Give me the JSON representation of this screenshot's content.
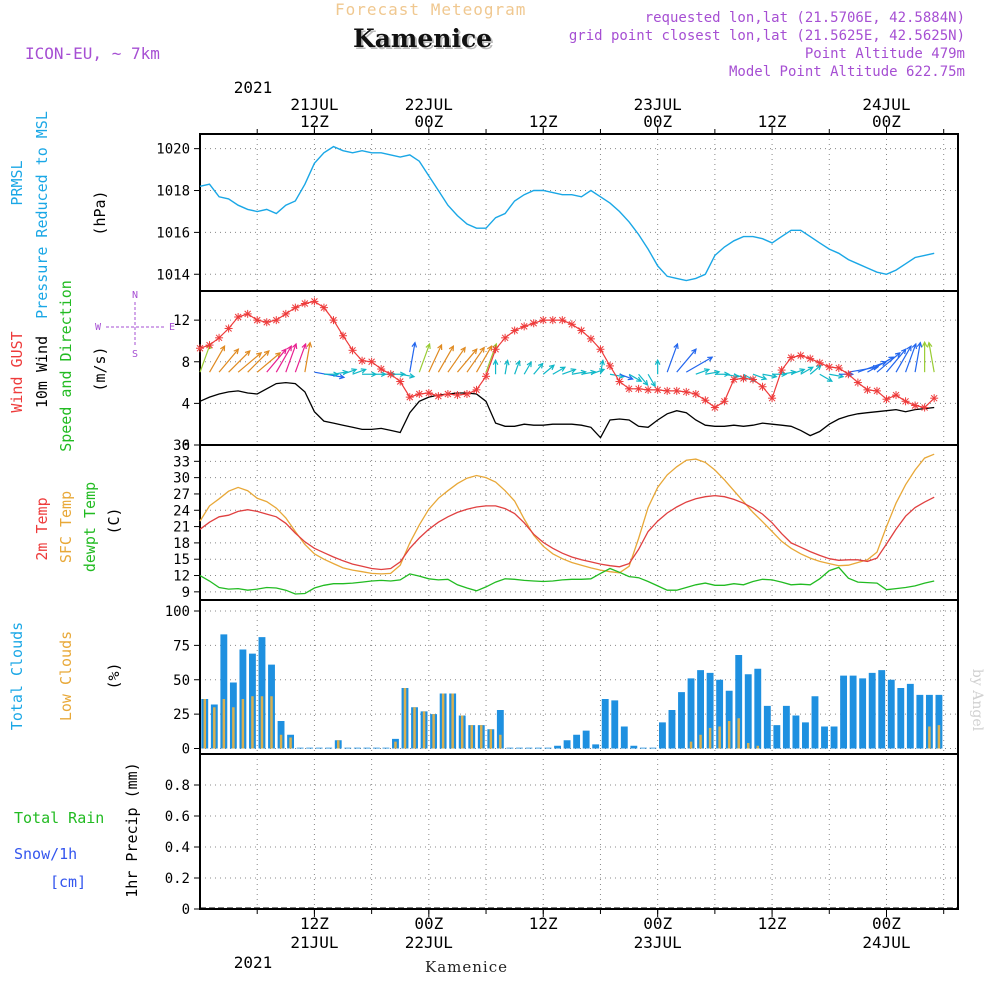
{
  "header": {
    "title": "Forecast Meteogram",
    "place": "Kamenice",
    "model": "ICON-EU, ~ 7km",
    "requested": "requested lon,lat (21.5706E, 42.5884N)",
    "gridpoint": "grid point closest lon,lat (21.5625E, 42.5625N)",
    "point_alt": "Point Altitude 479m",
    "model_alt": "Model Point Altitude 622.75m"
  },
  "footer": {
    "place": "Kamenice",
    "watermark": "by Angel"
  },
  "labels": {
    "prmsl": "PRMSL",
    "pressure_msl": "Pressure Reduced to MSL",
    "hpa": "(hPa)",
    "wind_gust": "Wind GUST",
    "wind_10m": "10m Wind",
    "speed_dir": "Speed and Direction",
    "ms": "(m/s)",
    "compass_n": "N",
    "compass_s": "S",
    "compass_w": "W",
    "compass_e": "E",
    "temp_2m": "2m Temp",
    "sfc_temp": "SFC Temp",
    "dewpt": "dewpt Temp",
    "celsius": "(C)",
    "total_clouds": "Total Clouds",
    "low_clouds": "Low Clouds",
    "percent": "(%)",
    "total_rain": "Total  Rain",
    "snow": "Snow/1h",
    "cm": "[cm]",
    "precip": "1hr Precip (mm)"
  },
  "time_axis": {
    "top_year": "2021",
    "top_ticks": [
      {
        "hour": 12,
        "l1": "21JUL",
        "l2": "12Z"
      },
      {
        "hour": 24,
        "l1": "22JUL",
        "l2": "00Z"
      },
      {
        "hour": 36,
        "l1": "",
        "l2": "12Z"
      },
      {
        "hour": 48,
        "l1": "23JUL",
        "l2": "00Z"
      },
      {
        "hour": 60,
        "l1": "",
        "l2": "12Z"
      },
      {
        "hour": 72,
        "l1": "24JUL",
        "l2": "00Z"
      }
    ],
    "bottom_ticks": [
      {
        "hour": 12,
        "l1": "12Z",
        "l2": "21JUL"
      },
      {
        "hour": 24,
        "l1": "00Z",
        "l2": "22JUL"
      },
      {
        "hour": 36,
        "l1": "12Z",
        "l2": ""
      },
      {
        "hour": 48,
        "l1": "00Z",
        "l2": "23JUL"
      },
      {
        "hour": 60,
        "l1": "12Z",
        "l2": ""
      },
      {
        "hour": 72,
        "l1": "00Z",
        "l2": "24JUL"
      }
    ],
    "bottom_year": "2021"
  },
  "colors": {
    "pressure": "#1aa7e6",
    "gust": "#ee3b3b",
    "wind": "#000000",
    "temp2m": "#e04040",
    "sfc": "#e8a838",
    "dewpt": "#22bb22",
    "total_clouds": "#1e90e0",
    "low_clouds": "#d8b050",
    "label_pressure": "#1aa7e6",
    "label_gust": "#ee3b3b",
    "label_green": "#22bb22",
    "label_orange": "#e8a838",
    "label_blue": "#3355ee",
    "label_purple": "#a64fd3"
  },
  "chart_data": [
    {
      "type": "line",
      "name": "pressure",
      "ylim": [
        1013.2,
        1020.7
      ],
      "yticks": [
        1014,
        1016,
        1018,
        1020
      ],
      "x": [
        0,
        1,
        2,
        3,
        4,
        5,
        6,
        7,
        8,
        9,
        10,
        11,
        12,
        13,
        14,
        15,
        16,
        17,
        18,
        19,
        20,
        21,
        22,
        23,
        24,
        25,
        26,
        27,
        28,
        29,
        30,
        31,
        32,
        33,
        34,
        35,
        36,
        37,
        38,
        39,
        40,
        41,
        42,
        43,
        44,
        45,
        46,
        47,
        48,
        49,
        50,
        51,
        52,
        53,
        54,
        55,
        56,
        57,
        58,
        59,
        60,
        61,
        62,
        63,
        64,
        65,
        66,
        67,
        68,
        69,
        70,
        71,
        72,
        73,
        74,
        75,
        76,
        77
      ],
      "values": [
        1018.2,
        1018.3,
        1017.7,
        1017.6,
        1017.3,
        1017.1,
        1017.0,
        1017.1,
        1016.9,
        1017.3,
        1017.5,
        1018.3,
        1019.3,
        1019.8,
        1020.1,
        1019.9,
        1019.8,
        1019.9,
        1019.8,
        1019.8,
        1019.7,
        1019.6,
        1019.7,
        1019.4,
        1018.7,
        1018.0,
        1017.3,
        1016.8,
        1016.4,
        1016.2,
        1016.2,
        1016.7,
        1016.9,
        1017.5,
        1017.8,
        1018.0,
        1018.0,
        1017.9,
        1017.8,
        1017.8,
        1017.7,
        1018.0,
        1017.7,
        1017.4,
        1017.0,
        1016.5,
        1015.9,
        1015.2,
        1014.4,
        1013.9,
        1013.8,
        1013.7,
        1013.8,
        1014.0,
        1014.9,
        1015.3,
        1015.6,
        1015.8,
        1015.8,
        1015.7,
        1015.5,
        1015.8,
        1016.1,
        1016.1,
        1015.8,
        1015.5,
        1015.2,
        1015.0,
        1014.7,
        1014.5,
        1014.3,
        1014.1,
        1014.0,
        1014.2,
        1014.5,
        1014.8,
        1014.9,
        1015.0
      ]
    },
    {
      "type": "line",
      "name": "wind",
      "ylim": [
        0,
        14.8
      ],
      "yticks": [
        0,
        4,
        8,
        12
      ],
      "x": [
        0,
        1,
        2,
        3,
        4,
        5,
        6,
        7,
        8,
        9,
        10,
        11,
        12,
        13,
        14,
        15,
        16,
        17,
        18,
        19,
        20,
        21,
        22,
        23,
        24,
        25,
        26,
        27,
        28,
        29,
        30,
        31,
        32,
        33,
        34,
        35,
        36,
        37,
        38,
        39,
        40,
        41,
        42,
        43,
        44,
        45,
        46,
        47,
        48,
        49,
        50,
        51,
        52,
        53,
        54,
        55,
        56,
        57,
        58,
        59,
        60,
        61,
        62,
        63,
        64,
        65,
        66,
        67,
        68,
        69,
        70,
        71,
        72,
        73,
        74,
        75,
        76,
        77
      ],
      "gust": [
        9.3,
        9.6,
        10.3,
        11.2,
        12.3,
        12.6,
        12.0,
        11.8,
        12.0,
        12.6,
        13.2,
        13.6,
        13.8,
        13.2,
        12.0,
        10.5,
        9.1,
        8.1,
        8.0,
        7.3,
        6.8,
        6.1,
        4.6,
        4.9,
        5.0,
        4.7,
        4.9,
        4.8,
        4.9,
        5.3,
        6.6,
        9.2,
        10.3,
        11.0,
        11.4,
        11.7,
        12.0,
        12.0,
        12.0,
        11.6,
        11.0,
        10.2,
        9.2,
        7.6,
        6.1,
        5.4,
        5.4,
        5.3,
        5.3,
        5.2,
        5.2,
        5.1,
        4.9,
        4.3,
        3.6,
        4.2,
        6.3,
        6.4,
        6.3,
        5.6,
        4.5,
        7.2,
        8.4,
        8.6,
        8.3,
        7.9,
        7.5,
        7.4,
        6.8,
        6.0,
        5.3,
        5.2,
        4.4,
        4.8,
        4.2,
        3.8,
        3.6,
        4.5
      ],
      "speed": [
        4.2,
        4.6,
        4.9,
        5.1,
        5.2,
        5.0,
        4.9,
        5.4,
        5.9,
        6.0,
        5.9,
        5.1,
        3.2,
        2.3,
        2.1,
        1.9,
        1.7,
        1.5,
        1.5,
        1.6,
        1.4,
        1.2,
        3.1,
        4.2,
        4.6,
        4.8,
        4.9,
        5.0,
        5.0,
        4.9,
        4.2,
        2.1,
        1.8,
        1.8,
        2.0,
        1.9,
        1.9,
        2.0,
        2.0,
        2.0,
        1.9,
        1.7,
        0.7,
        2.4,
        2.5,
        2.4,
        1.8,
        1.7,
        2.4,
        3.0,
        3.3,
        3.1,
        2.4,
        1.9,
        1.8,
        1.8,
        1.9,
        1.8,
        1.9,
        2.1,
        2.0,
        1.9,
        1.8,
        1.4,
        0.9,
        1.3,
        2.0,
        2.5,
        2.8,
        3.0,
        3.1,
        3.2,
        3.3,
        3.4,
        3.2,
        3.4,
        3.5,
        3.6
      ],
      "dir": [
        200,
        210,
        220,
        225,
        230,
        225,
        230,
        220,
        210,
        200,
        200,
        190,
        280,
        270,
        260,
        250,
        250,
        270,
        270,
        270,
        270,
        280,
        190,
        200,
        205,
        210,
        215,
        220,
        215,
        210,
        200,
        180,
        190,
        200,
        210,
        220,
        230,
        240,
        250,
        260,
        260,
        250,
        190,
        280,
        290,
        300,
        320,
        330,
        180,
        200,
        220,
        240,
        250,
        260,
        270,
        280,
        290,
        300,
        290,
        280,
        270,
        260,
        250,
        240,
        230,
        300,
        280,
        270,
        260,
        250,
        240,
        230,
        220,
        210,
        200,
        190,
        180,
        170
      ]
    },
    {
      "type": "line",
      "name": "temperature",
      "ylim": [
        7.5,
        36
      ],
      "yticks": [
        9,
        12,
        15,
        18,
        21,
        24,
        27,
        30,
        33,
        36
      ],
      "x": [
        0,
        1,
        2,
        3,
        4,
        5,
        6,
        7,
        8,
        9,
        10,
        11,
        12,
        13,
        14,
        15,
        16,
        17,
        18,
        19,
        20,
        21,
        22,
        23,
        24,
        25,
        26,
        27,
        28,
        29,
        30,
        31,
        32,
        33,
        34,
        35,
        36,
        37,
        38,
        39,
        40,
        41,
        42,
        43,
        44,
        45,
        46,
        47,
        48,
        49,
        50,
        51,
        52,
        53,
        54,
        55,
        56,
        57,
        58,
        59,
        60,
        61,
        62,
        63,
        64,
        65,
        66,
        67,
        68,
        69,
        70,
        71,
        72,
        73,
        74,
        75,
        76,
        77
      ],
      "temp2m": [
        20.5,
        21.8,
        22.8,
        23.1,
        23.8,
        24.1,
        23.8,
        23.3,
        22.8,
        21.6,
        19.8,
        18.2,
        17.0,
        16.2,
        15.4,
        14.7,
        14.1,
        13.7,
        13.3,
        13.1,
        13.3,
        14.5,
        17.0,
        18.9,
        20.5,
        21.8,
        22.8,
        23.6,
        24.2,
        24.6,
        24.8,
        24.8,
        24.3,
        23.4,
        21.7,
        19.6,
        18.1,
        17.0,
        16.1,
        15.4,
        14.9,
        14.5,
        14.1,
        13.8,
        13.6,
        14.2,
        16.8,
        20.1,
        22.0,
        23.5,
        24.6,
        25.5,
        26.1,
        26.5,
        26.7,
        26.5,
        26.0,
        25.3,
        24.4,
        23.3,
        21.7,
        19.7,
        18.0,
        17.2,
        16.4,
        15.7,
        15.1,
        14.8,
        14.9,
        14.9,
        14.6,
        15.2,
        17.8,
        20.5,
        22.9,
        24.5,
        25.5,
        26.4
      ],
      "sfc": [
        22.0,
        24.8,
        26.1,
        27.5,
        28.2,
        27.6,
        26.2,
        25.6,
        24.4,
        22.6,
        20.1,
        17.7,
        16.0,
        15.0,
        14.2,
        13.4,
        13.0,
        12.7,
        12.4,
        12.3,
        12.4,
        13.9,
        18.0,
        21.3,
        24.2,
        26.2,
        27.6,
        28.9,
        29.9,
        30.4,
        30.0,
        29.2,
        27.6,
        25.7,
        22.4,
        19.4,
        17.4,
        16.0,
        15.1,
        14.4,
        13.9,
        13.4,
        13.0,
        12.7,
        12.5,
        13.7,
        18.8,
        24.5,
        28.2,
        30.5,
        32.0,
        33.2,
        33.4,
        32.8,
        31.4,
        29.6,
        27.6,
        25.6,
        23.6,
        21.9,
        20.1,
        18.3,
        17.0,
        16.0,
        15.2,
        14.6,
        14.2,
        13.8,
        13.9,
        14.4,
        14.9,
        16.3,
        21.0,
        25.3,
        28.7,
        31.4,
        33.6,
        34.3
      ],
      "dewpt": [
        12.0,
        11.0,
        9.8,
        9.5,
        9.6,
        9.3,
        9.5,
        9.8,
        9.7,
        9.3,
        8.6,
        8.7,
        9.7,
        10.2,
        10.5,
        10.5,
        10.6,
        10.8,
        11.0,
        11.1,
        11.0,
        11.2,
        12.3,
        11.9,
        11.4,
        11.2,
        11.3,
        10.3,
        9.7,
        9.2,
        9.9,
        10.8,
        11.4,
        11.3,
        11.1,
        11.0,
        10.9,
        11.0,
        11.2,
        11.3,
        11.3,
        11.4,
        12.4,
        13.3,
        12.6,
        11.8,
        11.6,
        10.9,
        10.1,
        9.3,
        9.3,
        9.8,
        10.3,
        10.6,
        10.2,
        10.2,
        10.5,
        10.3,
        10.9,
        11.3,
        11.2,
        10.8,
        10.3,
        10.4,
        10.3,
        11.4,
        12.9,
        13.5,
        11.5,
        10.8,
        10.7,
        10.6,
        9.4,
        9.6,
        9.8,
        10.1,
        10.6,
        11.0
      ]
    },
    {
      "type": "bar",
      "name": "clouds",
      "ylim": [
        -4,
        108
      ],
      "yticks": [
        0,
        25,
        50,
        75,
        100
      ],
      "x": [
        0,
        1,
        2,
        3,
        4,
        5,
        6,
        7,
        8,
        9,
        10,
        11,
        12,
        13,
        14,
        15,
        16,
        17,
        18,
        19,
        20,
        21,
        22,
        23,
        24,
        25,
        26,
        27,
        28,
        29,
        30,
        31,
        32,
        33,
        34,
        35,
        36,
        37,
        38,
        39,
        40,
        41,
        42,
        43,
        44,
        45,
        46,
        47,
        48,
        49,
        50,
        51,
        52,
        53,
        54,
        55,
        56,
        57,
        58,
        59,
        60,
        61,
        62,
        63,
        64,
        65,
        66,
        67,
        68,
        69,
        70,
        71,
        72,
        73,
        74,
        75,
        76,
        77
      ],
      "total": [
        36,
        32,
        83,
        48,
        72,
        69,
        81,
        61,
        20,
        10,
        0,
        0,
        0,
        0,
        6,
        0,
        0,
        0,
        0,
        0,
        7,
        44,
        30,
        27,
        25,
        40,
        40,
        24,
        17,
        17,
        14,
        28,
        0,
        0,
        0,
        0,
        0,
        2,
        6,
        10,
        13,
        3,
        36,
        35,
        16,
        2,
        0,
        0,
        19,
        28,
        41,
        51,
        57,
        55,
        50,
        42,
        68,
        54,
        58,
        31,
        17,
        31,
        24,
        19,
        38,
        16,
        16,
        53,
        53,
        51,
        55,
        57,
        50,
        44,
        47,
        39,
        39,
        39
      ],
      "low": [
        36,
        30,
        36,
        30,
        36,
        38,
        38,
        38,
        10,
        8,
        0,
        0,
        0,
        0,
        6,
        0,
        0,
        0,
        0,
        0,
        5,
        44,
        30,
        27,
        25,
        40,
        40,
        24,
        17,
        17,
        14,
        10,
        0,
        0,
        0,
        0,
        0,
        0,
        0,
        0,
        0,
        0,
        0,
        0,
        0,
        0,
        0,
        0,
        0,
        0,
        0,
        5,
        10,
        15,
        16,
        20,
        22,
        4,
        2,
        0,
        0,
        0,
        0,
        0,
        0,
        0,
        0,
        0,
        0,
        0,
        0,
        0,
        0,
        0,
        0,
        0,
        16,
        17
      ]
    },
    {
      "type": "bar",
      "name": "precip",
      "ylim": [
        0,
        1.0
      ],
      "yticks": [
        0,
        0.2,
        0.4,
        0.6,
        0.8
      ],
      "x": [
        0,
        1,
        2,
        3,
        4,
        5,
        6,
        7,
        8,
        9,
        10,
        11,
        12,
        13,
        14,
        15,
        16,
        17,
        18,
        19,
        20,
        21,
        22,
        23,
        24,
        25,
        26,
        27,
        28,
        29,
        30,
        31,
        32,
        33,
        34,
        35,
        36,
        37,
        38,
        39,
        40,
        41,
        42,
        43,
        44,
        45,
        46,
        47,
        48,
        49,
        50,
        51,
        52,
        53,
        54,
        55,
        56,
        57,
        58,
        59,
        60,
        61,
        62,
        63,
        64,
        65,
        66,
        67,
        68,
        69,
        70,
        71,
        72,
        73,
        74,
        75,
        76,
        77
      ],
      "rain": [],
      "snow": []
    }
  ]
}
